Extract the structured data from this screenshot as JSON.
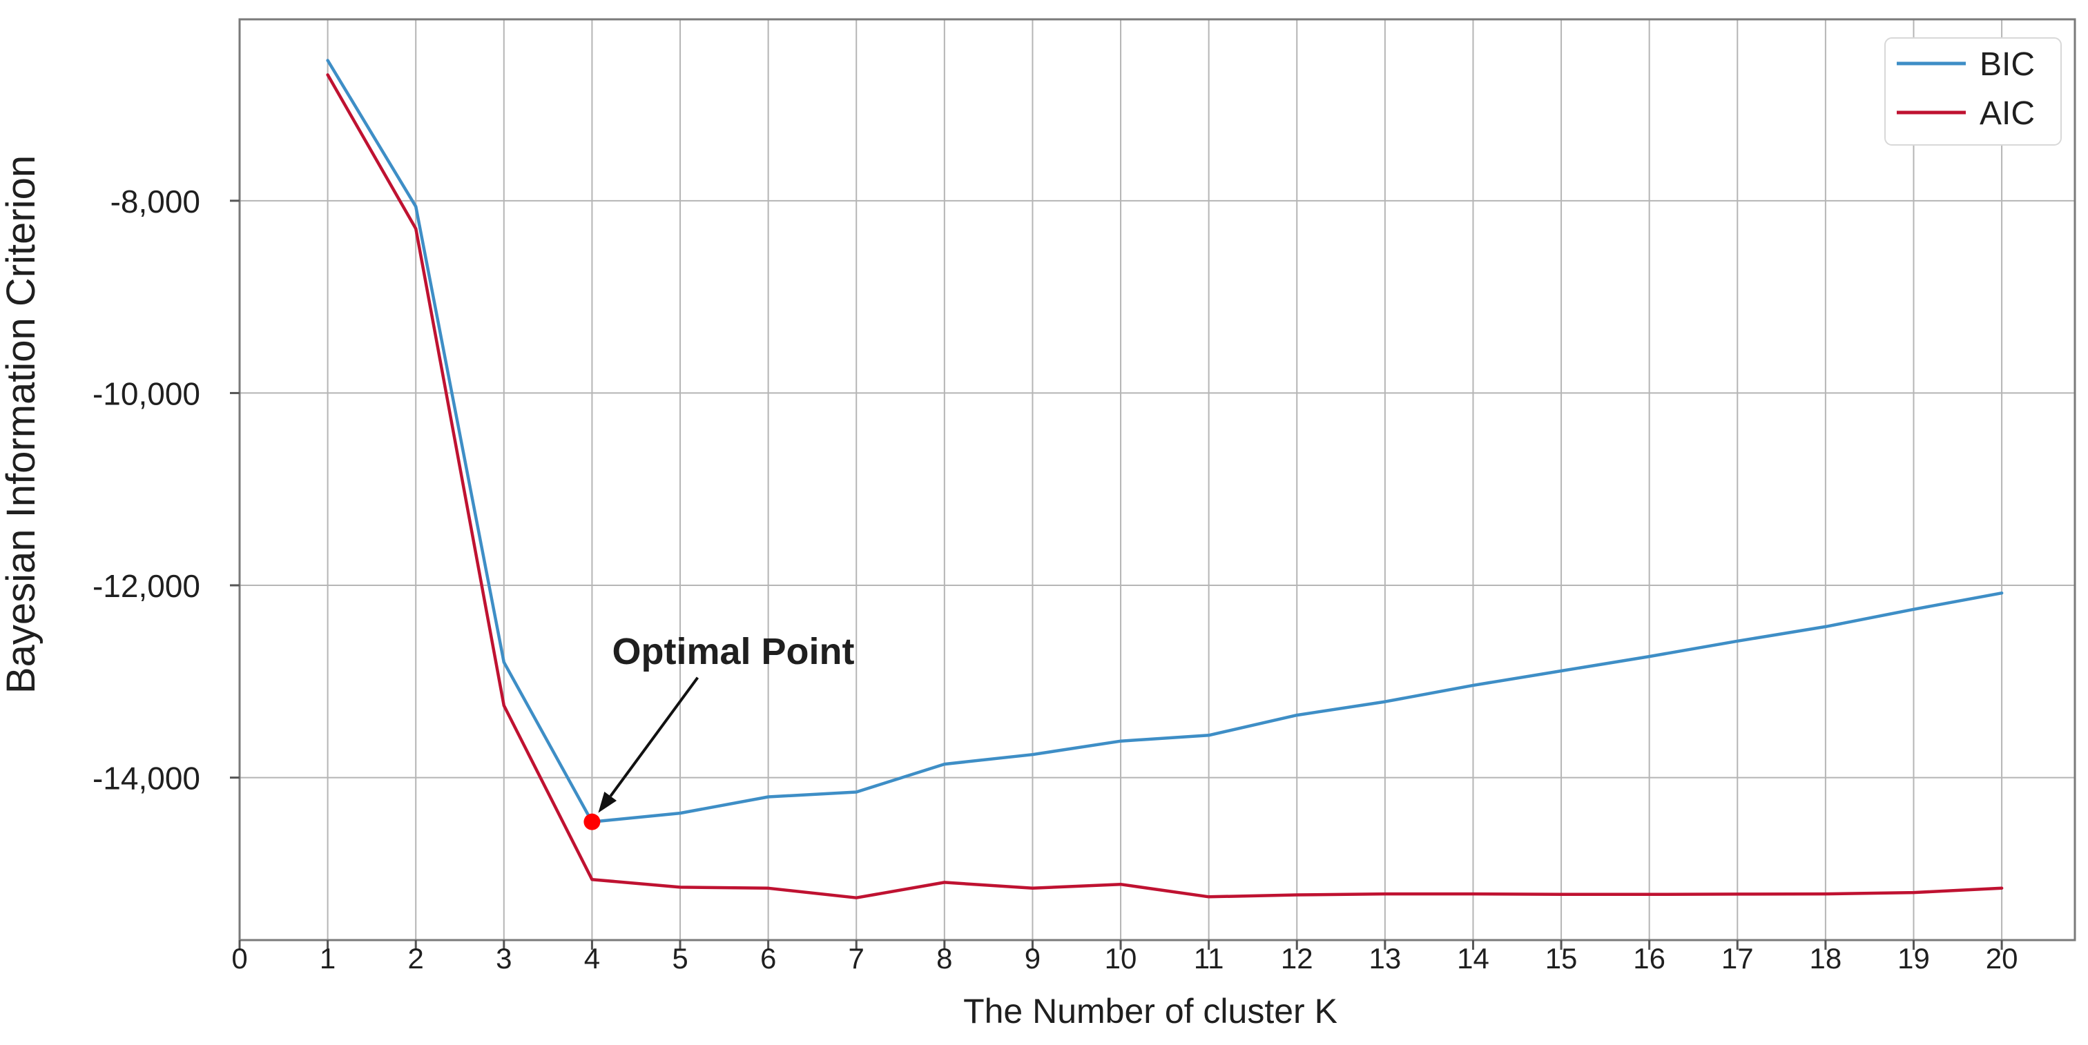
{
  "chart_data": {
    "type": "line",
    "title": "",
    "xlabel": "The Number of cluster K",
    "ylabel": "Bayesian Information Criterion",
    "grid": true,
    "xlim": [
      0,
      20.83
    ],
    "ylim": [
      -15690,
      -6113
    ],
    "x_ticks": [
      {
        "value": 0,
        "label": "0"
      },
      {
        "value": 1,
        "label": "1"
      },
      {
        "value": 2,
        "label": "2"
      },
      {
        "value": 3,
        "label": "3"
      },
      {
        "value": 4,
        "label": "4"
      },
      {
        "value": 5,
        "label": "5"
      },
      {
        "value": 6,
        "label": "6"
      },
      {
        "value": 7,
        "label": "7"
      },
      {
        "value": 8,
        "label": "8"
      },
      {
        "value": 9,
        "label": "9"
      },
      {
        "value": 10,
        "label": "10"
      },
      {
        "value": 11,
        "label": "11"
      },
      {
        "value": 12,
        "label": "12"
      },
      {
        "value": 13,
        "label": "13"
      },
      {
        "value": 14,
        "label": "14"
      },
      {
        "value": 15,
        "label": "15"
      },
      {
        "value": 16,
        "label": "16"
      },
      {
        "value": 17,
        "label": "17"
      },
      {
        "value": 18,
        "label": "18"
      },
      {
        "value": 19,
        "label": "19"
      },
      {
        "value": 20,
        "label": "20"
      }
    ],
    "y_ticks": [
      {
        "value": -8000,
        "label": "-8,000"
      },
      {
        "value": -10000,
        "label": "-10,000"
      },
      {
        "value": -12000,
        "label": "-12,000"
      },
      {
        "value": -14000,
        "label": "-14,000"
      }
    ],
    "x": [
      1,
      2,
      3,
      4,
      5,
      6,
      7,
      8,
      9,
      10,
      11,
      12,
      13,
      14,
      15,
      16,
      17,
      18,
      19,
      20
    ],
    "series": [
      {
        "name": "BIC",
        "color": "#3E8EC6",
        "values": [
          -6540,
          -8060,
          -12800,
          -14460,
          -14370,
          -14200,
          -14150,
          -13860,
          -13760,
          -13620,
          -13560,
          -13350,
          -13210,
          -13040,
          -12890,
          -12740,
          -12580,
          -12430,
          -12250,
          -12080
        ]
      },
      {
        "name": "AIC",
        "color": "#BF1231",
        "values": [
          -6690,
          -8290,
          -13250,
          -15060,
          -15140,
          -15150,
          -15250,
          -15090,
          -15150,
          -15110,
          -15240,
          -15220,
          -15210,
          -15210,
          -15215,
          -15215,
          -15212,
          -15210,
          -15195,
          -15150
        ]
      }
    ],
    "legend": {
      "position": "top-right",
      "entries": [
        "BIC",
        "AIC"
      ]
    },
    "annotation": {
      "text": "Optimal Point",
      "x": 4,
      "y": -14460,
      "marker_color": "#FF0000"
    },
    "colors": {
      "grid": "#B5B5B5",
      "frame": "#7A7A7A",
      "tick": "#555555",
      "text": "#1F1F1F"
    }
  }
}
